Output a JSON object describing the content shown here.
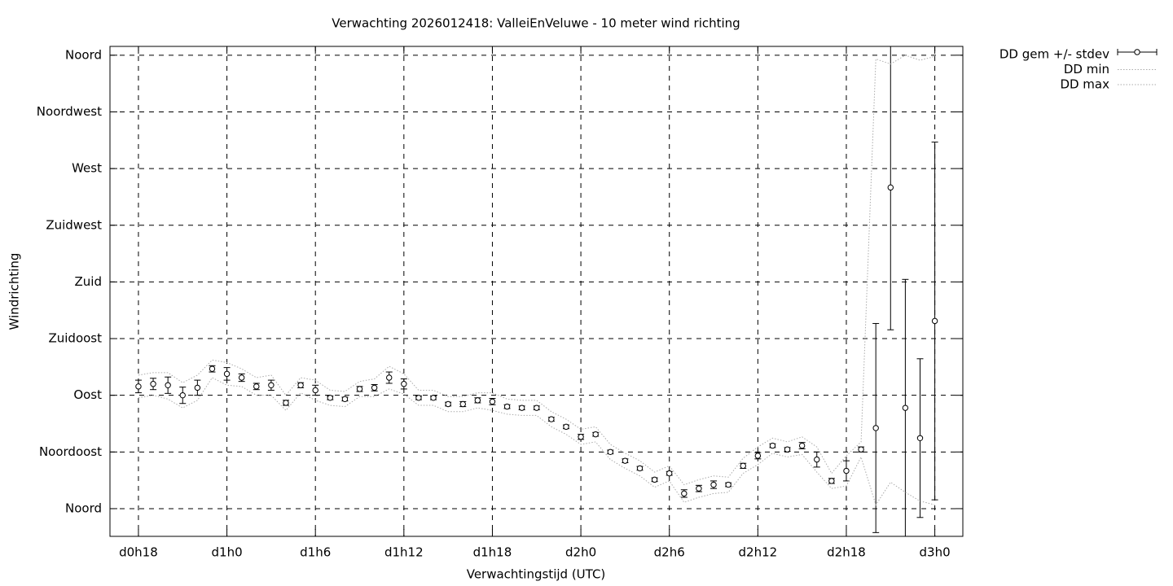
{
  "chart_data": {
    "type": "errorbar",
    "title": "Verwachting 2026012418: ValleiEnVeluwe - 10 meter wind richting",
    "xlabel": "Verwachtingstijd (UTC)",
    "ylabel": "Windrichting",
    "x": [
      18,
      19,
      20,
      21,
      22,
      23,
      24,
      25,
      26,
      27,
      28,
      29,
      30,
      31,
      32,
      33,
      34,
      35,
      36,
      37,
      38,
      39,
      40,
      41,
      42,
      43,
      44,
      45,
      46,
      47,
      48,
      49,
      50,
      51,
      52,
      53,
      54,
      55,
      56,
      57,
      58,
      59,
      60,
      61,
      62,
      63,
      64,
      65,
      66,
      67,
      68,
      69,
      70,
      71,
      72
    ],
    "series": [
      {
        "name": "DD gem +/- stdev",
        "color": "#000000",
        "values": [
          97,
          99,
          98,
          90,
          96,
          111,
          107,
          104,
          97,
          98,
          84,
          98,
          94,
          88,
          87,
          95,
          96,
          104,
          99,
          88,
          88,
          83,
          83,
          86,
          85,
          81,
          80,
          80,
          71,
          65,
          57,
          59,
          45,
          38,
          32,
          23,
          28,
          12,
          16,
          19,
          19,
          34,
          42,
          50,
          47,
          50,
          39,
          22,
          30,
          47,
          64,
          255,
          80,
          56,
          149
        ],
        "errors": [
          5,
          4.5,
          6.5,
          6.5,
          6,
          2.5,
          5,
          3,
          2.5,
          4,
          2,
          2,
          4,
          1.5,
          1.5,
          2,
          2.5,
          4.5,
          4,
          1.5,
          1.5,
          1.5,
          2,
          2,
          2.5,
          1.5,
          1.5,
          1.5,
          1.5,
          1.5,
          2,
          1.5,
          1.5,
          1.5,
          1.5,
          1.5,
          1.5,
          3,
          2.5,
          3,
          1.5,
          2,
          2.5,
          1.5,
          1.5,
          2.5,
          6,
          2,
          8,
          2,
          83,
          113,
          102,
          63,
          142
        ]
      },
      {
        "name": "DD min",
        "color": "#aaaaaa",
        "values": [
          88,
          90,
          87,
          80,
          86,
          104,
          98,
          97,
          90,
          90,
          78,
          92,
          86,
          82,
          81,
          89,
          89,
          95,
          91,
          82,
          82,
          77,
          77,
          80,
          78,
          75,
          74,
          74,
          65,
          59,
          51,
          53,
          39,
          32,
          26,
          17,
          22,
          5,
          9,
          12,
          13,
          28,
          35,
          44,
          41,
          43,
          29,
          16,
          18,
          41,
          3,
          21,
          13,
          6,
          3
        ]
      },
      {
        "name": "DD max",
        "color": "#aaaaaa",
        "values": [
          106,
          108,
          108,
          100,
          106,
          118,
          116,
          111,
          104,
          106,
          90,
          104,
          102,
          94,
          93,
          101,
          103,
          113,
          107,
          94,
          94,
          89,
          89,
          92,
          92,
          87,
          86,
          86,
          77,
          71,
          63,
          65,
          51,
          44,
          38,
          29,
          34,
          19,
          23,
          26,
          25,
          40,
          49,
          56,
          53,
          57,
          49,
          28,
          42,
          53,
          357,
          353,
          360,
          356,
          359
        ]
      }
    ],
    "xlim": [
      16.07,
      73.9
    ],
    "xticks": [
      {
        "value": 18,
        "label": "d0h18"
      },
      {
        "value": 24,
        "label": "d1h0"
      },
      {
        "value": 30,
        "label": "d1h6"
      },
      {
        "value": 36,
        "label": "d1h12"
      },
      {
        "value": 42,
        "label": "d1h18"
      },
      {
        "value": 48,
        "label": "d2h0"
      },
      {
        "value": 54,
        "label": "d2h6"
      },
      {
        "value": 60,
        "label": "d2h12"
      },
      {
        "value": 66,
        "label": "d2h18"
      },
      {
        "value": 72,
        "label": "d3h0"
      }
    ],
    "ylim": [
      -22,
      367
    ],
    "yticks": [
      {
        "value": 0,
        "label": "Noord"
      },
      {
        "value": 45,
        "label": "Noordoost"
      },
      {
        "value": 90,
        "label": "Oost"
      },
      {
        "value": 135,
        "label": "Zuidoost"
      },
      {
        "value": 180,
        "label": "Zuid"
      },
      {
        "value": 225,
        "label": "Zuidwest"
      },
      {
        "value": 270,
        "label": "West"
      },
      {
        "value": 315,
        "label": "Noordwest"
      },
      {
        "value": 360,
        "label": "Noord"
      }
    ],
    "grid": true,
    "legend": "outside-right"
  }
}
